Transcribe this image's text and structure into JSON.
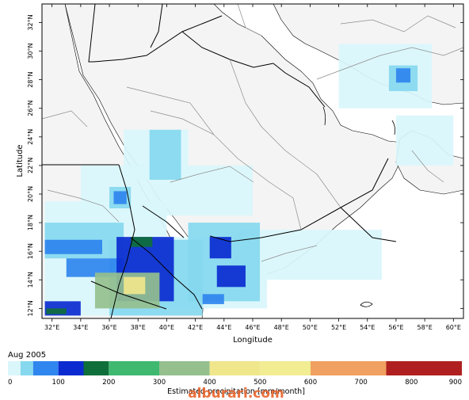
{
  "map": {
    "lon_ticks": [
      "32°E",
      "34°E",
      "36°E",
      "38°E",
      "40°E",
      "42°E",
      "44°E",
      "46°E",
      "48°E",
      "50°E",
      "52°E",
      "54°E",
      "56°E",
      "58°E",
      "60°E"
    ],
    "lat_ticks": [
      "12°N",
      "14°N",
      "16°N",
      "18°N",
      "20°N",
      "22°N",
      "24°N",
      "26°N",
      "28°N",
      "30°N",
      "32°N"
    ],
    "lon_range": [
      31.3,
      60.7
    ],
    "lat_range": [
      11.3,
      33.3
    ],
    "xlabel": "Longitude",
    "ylabel": "Latitude",
    "colors": {
      "frame": "#000000",
      "land": "#f4f4f4",
      "border_primary": "#000000",
      "border_secondary": "#8c8c8c"
    }
  },
  "legend": {
    "period": "Aug 2005",
    "title": "Estimated precipitation [mm/month]",
    "tick_values": [
      "0",
      "100",
      "200",
      "300",
      "400",
      "500",
      "600",
      "700",
      "800",
      "900"
    ],
    "value_range": [
      0,
      900
    ],
    "bins": [
      {
        "from": 0,
        "to": 25,
        "color": "#d9f6fb"
      },
      {
        "from": 25,
        "to": 50,
        "color": "#86d8ef"
      },
      {
        "from": 50,
        "to": 100,
        "color": "#2f86ee"
      },
      {
        "from": 100,
        "to": 150,
        "color": "#0b2bd0"
      },
      {
        "from": 150,
        "to": 200,
        "color": "#0f6f3a"
      },
      {
        "from": 200,
        "to": 300,
        "color": "#3fb870"
      },
      {
        "from": 300,
        "to": 400,
        "color": "#95c08e"
      },
      {
        "from": 400,
        "to": 500,
        "color": "#f0e68c"
      },
      {
        "from": 500,
        "to": 600,
        "color": "#f2ec93"
      },
      {
        "from": 600,
        "to": 750,
        "color": "#f0a060"
      },
      {
        "from": 750,
        "to": 900,
        "color": "#b02020"
      }
    ]
  },
  "watermark": "alburari.com",
  "precip_regions": [
    {
      "class": "light",
      "lon": [
        39.0,
        47.0
      ],
      "lat": [
        12.0,
        17.0
      ]
    },
    {
      "class": "light",
      "lon": [
        31.5,
        40.0
      ],
      "lat": [
        11.5,
        19.5
      ]
    },
    {
      "class": "light",
      "lon": [
        34.0,
        46.0
      ],
      "lat": [
        18.5,
        22.0
      ]
    },
    {
      "class": "light",
      "lon": [
        37.0,
        41.5
      ],
      "lat": [
        21.0,
        24.5
      ]
    },
    {
      "class": "light",
      "lon": [
        52.0,
        58.5
      ],
      "lat": [
        26.0,
        30.5
      ]
    },
    {
      "class": "light",
      "lon": [
        45.0,
        55.0
      ],
      "lat": [
        14.0,
        17.5
      ]
    },
    {
      "class": "light",
      "lon": [
        56.0,
        60.0
      ],
      "lat": [
        22.0,
        25.5
      ]
    },
    {
      "class": "moderate",
      "lon": [
        31.5,
        37.0
      ],
      "lat": [
        15.5,
        18.0
      ]
    },
    {
      "class": "moderate",
      "lon": [
        38.8,
        41.0
      ],
      "lat": [
        21.0,
        24.5
      ]
    },
    {
      "class": "moderate",
      "lon": [
        36.0,
        37.5
      ],
      "lat": [
        19.0,
        20.5
      ]
    },
    {
      "class": "moderate",
      "lon": [
        41.5,
        46.5
      ],
      "lat": [
        12.5,
        18.0
      ]
    },
    {
      "class": "moderate",
      "lon": [
        36.0,
        42.5
      ],
      "lat": [
        11.5,
        16.8
      ]
    },
    {
      "class": "moderate",
      "lon": [
        55.5,
        57.5
      ],
      "lat": [
        27.2,
        29.0
      ]
    },
    {
      "class": "heavy",
      "lon": [
        31.5,
        35.5
      ],
      "lat": [
        15.8,
        16.8
      ]
    },
    {
      "class": "heavy",
      "lon": [
        33.0,
        37.0
      ],
      "lat": [
        14.2,
        15.5
      ]
    },
    {
      "class": "heavy",
      "lon": [
        36.3,
        37.2
      ],
      "lat": [
        19.3,
        20.2
      ]
    },
    {
      "class": "heavy",
      "lon": [
        56.0,
        57.0
      ],
      "lat": [
        27.8,
        28.8
      ]
    },
    {
      "class": "heavy",
      "lon": [
        42.5,
        44.0
      ],
      "lat": [
        12.3,
        13.0
      ]
    },
    {
      "class": "very_heavy",
      "lon": [
        36.5,
        40.5
      ],
      "lat": [
        12.5,
        17.0
      ]
    },
    {
      "class": "very_heavy",
      "lon": [
        43.0,
        44.5
      ],
      "lat": [
        15.5,
        17.0
      ]
    },
    {
      "class": "very_heavy",
      "lon": [
        43.5,
        45.5
      ],
      "lat": [
        13.5,
        15.0
      ]
    },
    {
      "class": "very_heavy",
      "lon": [
        31.5,
        34.0
      ],
      "lat": [
        11.5,
        12.5
      ]
    },
    {
      "class": "dark_green",
      "lon": [
        37.5,
        39.0
      ],
      "lat": [
        16.3,
        17.0
      ]
    },
    {
      "class": "dark_green",
      "lon": [
        31.6,
        33.0
      ],
      "lat": [
        11.6,
        12.0
      ]
    },
    {
      "class": "sage",
      "lon": [
        35.0,
        39.5
      ],
      "lat": [
        12.0,
        14.5
      ]
    },
    {
      "class": "yellow",
      "lon": [
        37.0,
        38.5
      ],
      "lat": [
        13.0,
        14.2
      ]
    }
  ]
}
